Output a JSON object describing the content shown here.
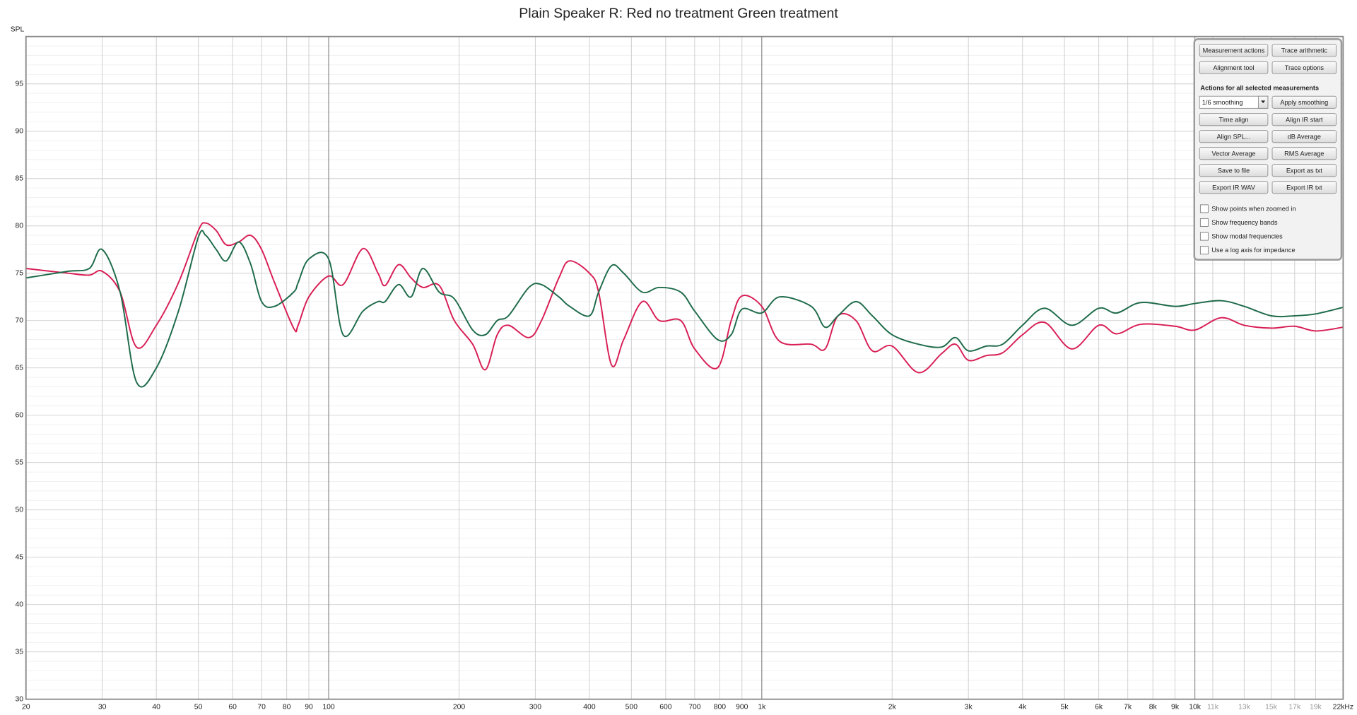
{
  "chart_data": {
    "type": "line",
    "title": "Plain Speaker R: Red no treatment Green treatment",
    "y_label": "SPL",
    "log_x": true,
    "grid": true,
    "xlim": [
      20,
      22000
    ],
    "ylim": [
      30,
      100
    ],
    "yticks": [
      30,
      35,
      40,
      45,
      50,
      55,
      60,
      65,
      70,
      75,
      80,
      85,
      90,
      95
    ],
    "xticks": [
      20,
      30,
      40,
      50,
      60,
      70,
      80,
      90,
      100,
      200,
      300,
      400,
      500,
      600,
      700,
      800,
      900,
      {
        "value": 1000,
        "label": "1k"
      },
      {
        "value": 2000,
        "label": "2k"
      },
      {
        "value": 3000,
        "label": "3k"
      },
      {
        "value": 4000,
        "label": "4k"
      },
      {
        "value": 5000,
        "label": "5k"
      },
      {
        "value": 6000,
        "label": "6k"
      },
      {
        "value": 7000,
        "label": "7k"
      },
      {
        "value": 8000,
        "label": "8k"
      },
      {
        "value": 9000,
        "label": "9k"
      },
      {
        "value": 10000,
        "label": "10k"
      },
      {
        "value": 11000,
        "label": "11k"
      },
      {
        "value": 13000,
        "label": "13k"
      },
      {
        "value": 15000,
        "label": "15k"
      },
      {
        "value": 17000,
        "label": "17k"
      },
      {
        "value": 19000,
        "label": "19k"
      },
      {
        "value": 22000,
        "label": "22kHz"
      }
    ],
    "x": [
      20,
      25,
      28,
      30,
      33,
      36,
      40,
      45,
      50,
      52,
      55,
      58,
      62,
      66,
      70,
      75,
      83,
      85,
      90,
      100,
      108,
      120,
      130,
      135,
      145,
      155,
      165,
      180,
      195,
      215,
      230,
      245,
      260,
      290,
      310,
      340,
      360,
      400,
      420,
      450,
      480,
      530,
      580,
      650,
      700,
      790,
      850,
      900,
      1000,
      1100,
      1300,
      1400,
      1500,
      1650,
      1800,
      2000,
      2300,
      2600,
      2800,
      3000,
      3300,
      3600,
      4000,
      4500,
      5200,
      6000,
      6600,
      7500,
      9000,
      10000,
      11500,
      13000,
      15000,
      17000,
      19000,
      22000
    ],
    "series": [
      {
        "color": "#d81e55",
        "values": [
          75.5,
          75.0,
          74.8,
          75.2,
          73,
          67.2,
          69.5,
          74,
          79.5,
          80.3,
          79.5,
          78,
          78.3,
          79,
          77.5,
          74,
          69.2,
          69.5,
          72.5,
          74.7,
          73.8,
          77.6,
          75,
          73.7,
          75.9,
          74.5,
          73.5,
          73.7,
          70,
          67.5,
          64.8,
          68.5,
          69.5,
          68.2,
          70,
          74.5,
          76.3,
          75,
          73,
          65.3,
          68,
          72,
          70,
          70,
          67,
          65,
          70,
          72.6,
          71.5,
          67.8,
          67.5,
          67,
          70.5,
          70,
          66.8,
          67.3,
          64.5,
          66.5,
          67.5,
          65.8,
          66.3,
          66.6,
          68.5,
          69.8,
          67,
          69.5,
          68.6,
          69.6,
          69.4,
          69,
          70.3,
          69.5,
          69.2,
          69.4,
          68.9,
          69.3
        ]
      },
      {
        "color": "#1e6b4a",
        "values": [
          74.5,
          75.2,
          75.5,
          77.5,
          73,
          63.5,
          65,
          71,
          78.8,
          79,
          77.5,
          76.3,
          78.3,
          76,
          72,
          71.5,
          73,
          74,
          76.5,
          76.5,
          68.5,
          71,
          72,
          72,
          73.8,
          72.5,
          75.5,
          73,
          72.3,
          69,
          68.5,
          70,
          70.5,
          73.5,
          73.8,
          72.5,
          71.5,
          70.5,
          73,
          75.8,
          75,
          73,
          73.5,
          73,
          71,
          68,
          68.5,
          71.2,
          70.8,
          72.5,
          71.5,
          69.3,
          70.5,
          72,
          70.5,
          68.5,
          67.5,
          67.2,
          68.2,
          66.8,
          67.3,
          67.5,
          69.5,
          71.3,
          69.5,
          71.3,
          70.8,
          71.9,
          71.5,
          71.8,
          72.1,
          71.5,
          70.5,
          70.5,
          70.7,
          71.4
        ]
      }
    ]
  },
  "panel": {
    "top_buttons": [
      [
        "Measurement actions",
        "Trace arithmetic"
      ],
      [
        "Alignment tool",
        "Trace options"
      ]
    ],
    "heading": "Actions for all selected measurements",
    "smoothing_select": "1/6 smoothing",
    "apply_button": "Apply smoothing",
    "action_buttons": [
      [
        "Time align",
        "Align IR start"
      ],
      [
        "Align SPL...",
        "dB Average"
      ],
      [
        "Vector Average",
        "RMS Average"
      ],
      [
        "Save to file",
        "Export as txt"
      ],
      [
        "Export IR WAV",
        "Export IR txt"
      ]
    ],
    "checkboxes": [
      "Show points when zoomed in",
      "Show frequency bands",
      "Show modal frequencies",
      "Use a log axis for impedance"
    ]
  }
}
